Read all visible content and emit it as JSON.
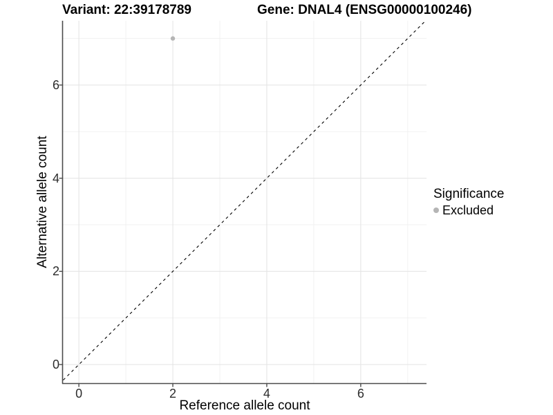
{
  "chart_data": {
    "type": "scatter",
    "titles": {
      "left": "Variant: 22:39178789",
      "right": "Gene: DNAL4 (ENSG00000100246)"
    },
    "xlabel": "Reference allele count",
    "ylabel": "Alternative allele count",
    "xlim": [
      -0.34,
      7.4
    ],
    "ylim": [
      -0.4,
      7.38
    ],
    "xticks": [
      0,
      2,
      4,
      6
    ],
    "yticks": [
      0,
      2,
      4,
      6
    ],
    "xticks_minor": [
      1,
      3,
      5,
      7
    ],
    "yticks_minor": [
      1,
      3,
      5,
      7
    ],
    "grid": "major+minor",
    "points": [
      {
        "x": 2,
        "y": 7,
        "significance": "Excluded"
      }
    ],
    "identity_line": {
      "style": "dashed",
      "equation": "y = x"
    },
    "legend": {
      "position": "right",
      "title": "Significance",
      "items": [
        {
          "label": "Excluded",
          "color": "#b5b5b5"
        }
      ]
    }
  },
  "colors": {
    "point": "#b5b5b5",
    "grid_major": "#e5e5e5",
    "grid_minor": "#f0f0f0",
    "axis_line": "#4a4a4a",
    "tick_mark": "#4a4a4a",
    "identity_line": "#000000",
    "background": "#ffffff"
  }
}
